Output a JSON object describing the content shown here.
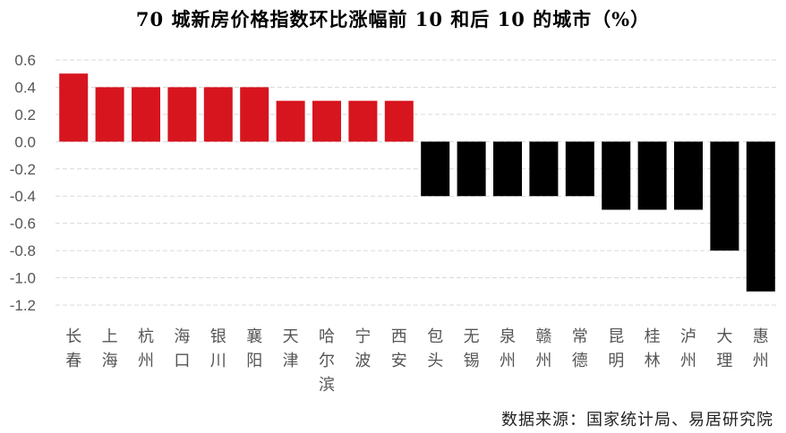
{
  "chart_data": {
    "type": "bar",
    "title": "70 城新房价格指数环比涨幅前 10 和后 10 的城市（%）",
    "categories": [
      "长春",
      "上海",
      "杭州",
      "海口",
      "银川",
      "襄阳",
      "天津",
      "哈尔滨",
      "宁波",
      "西安",
      "包头",
      "无锡",
      "泉州",
      "赣州",
      "常德",
      "昆明",
      "桂林",
      "泸州",
      "大理",
      "惠州"
    ],
    "values": [
      0.5,
      0.4,
      0.4,
      0.4,
      0.4,
      0.4,
      0.3,
      0.3,
      0.3,
      0.3,
      -0.4,
      -0.4,
      -0.4,
      -0.4,
      -0.4,
      -0.5,
      -0.5,
      -0.5,
      -0.8,
      -1.1
    ],
    "ylim": [
      -1.2,
      0.6
    ],
    "yticks": [
      "0.6",
      "0.4",
      "0.2",
      "0.0",
      "-0.2",
      "-0.4",
      "-0.6",
      "-0.8",
      "-1.0",
      "-1.2"
    ],
    "grid": true,
    "colors": {
      "positive": "#d7151f",
      "negative": "#000000",
      "grid": "#d9d9d9"
    }
  },
  "source": "数据来源：国家统计局、易居研究院"
}
